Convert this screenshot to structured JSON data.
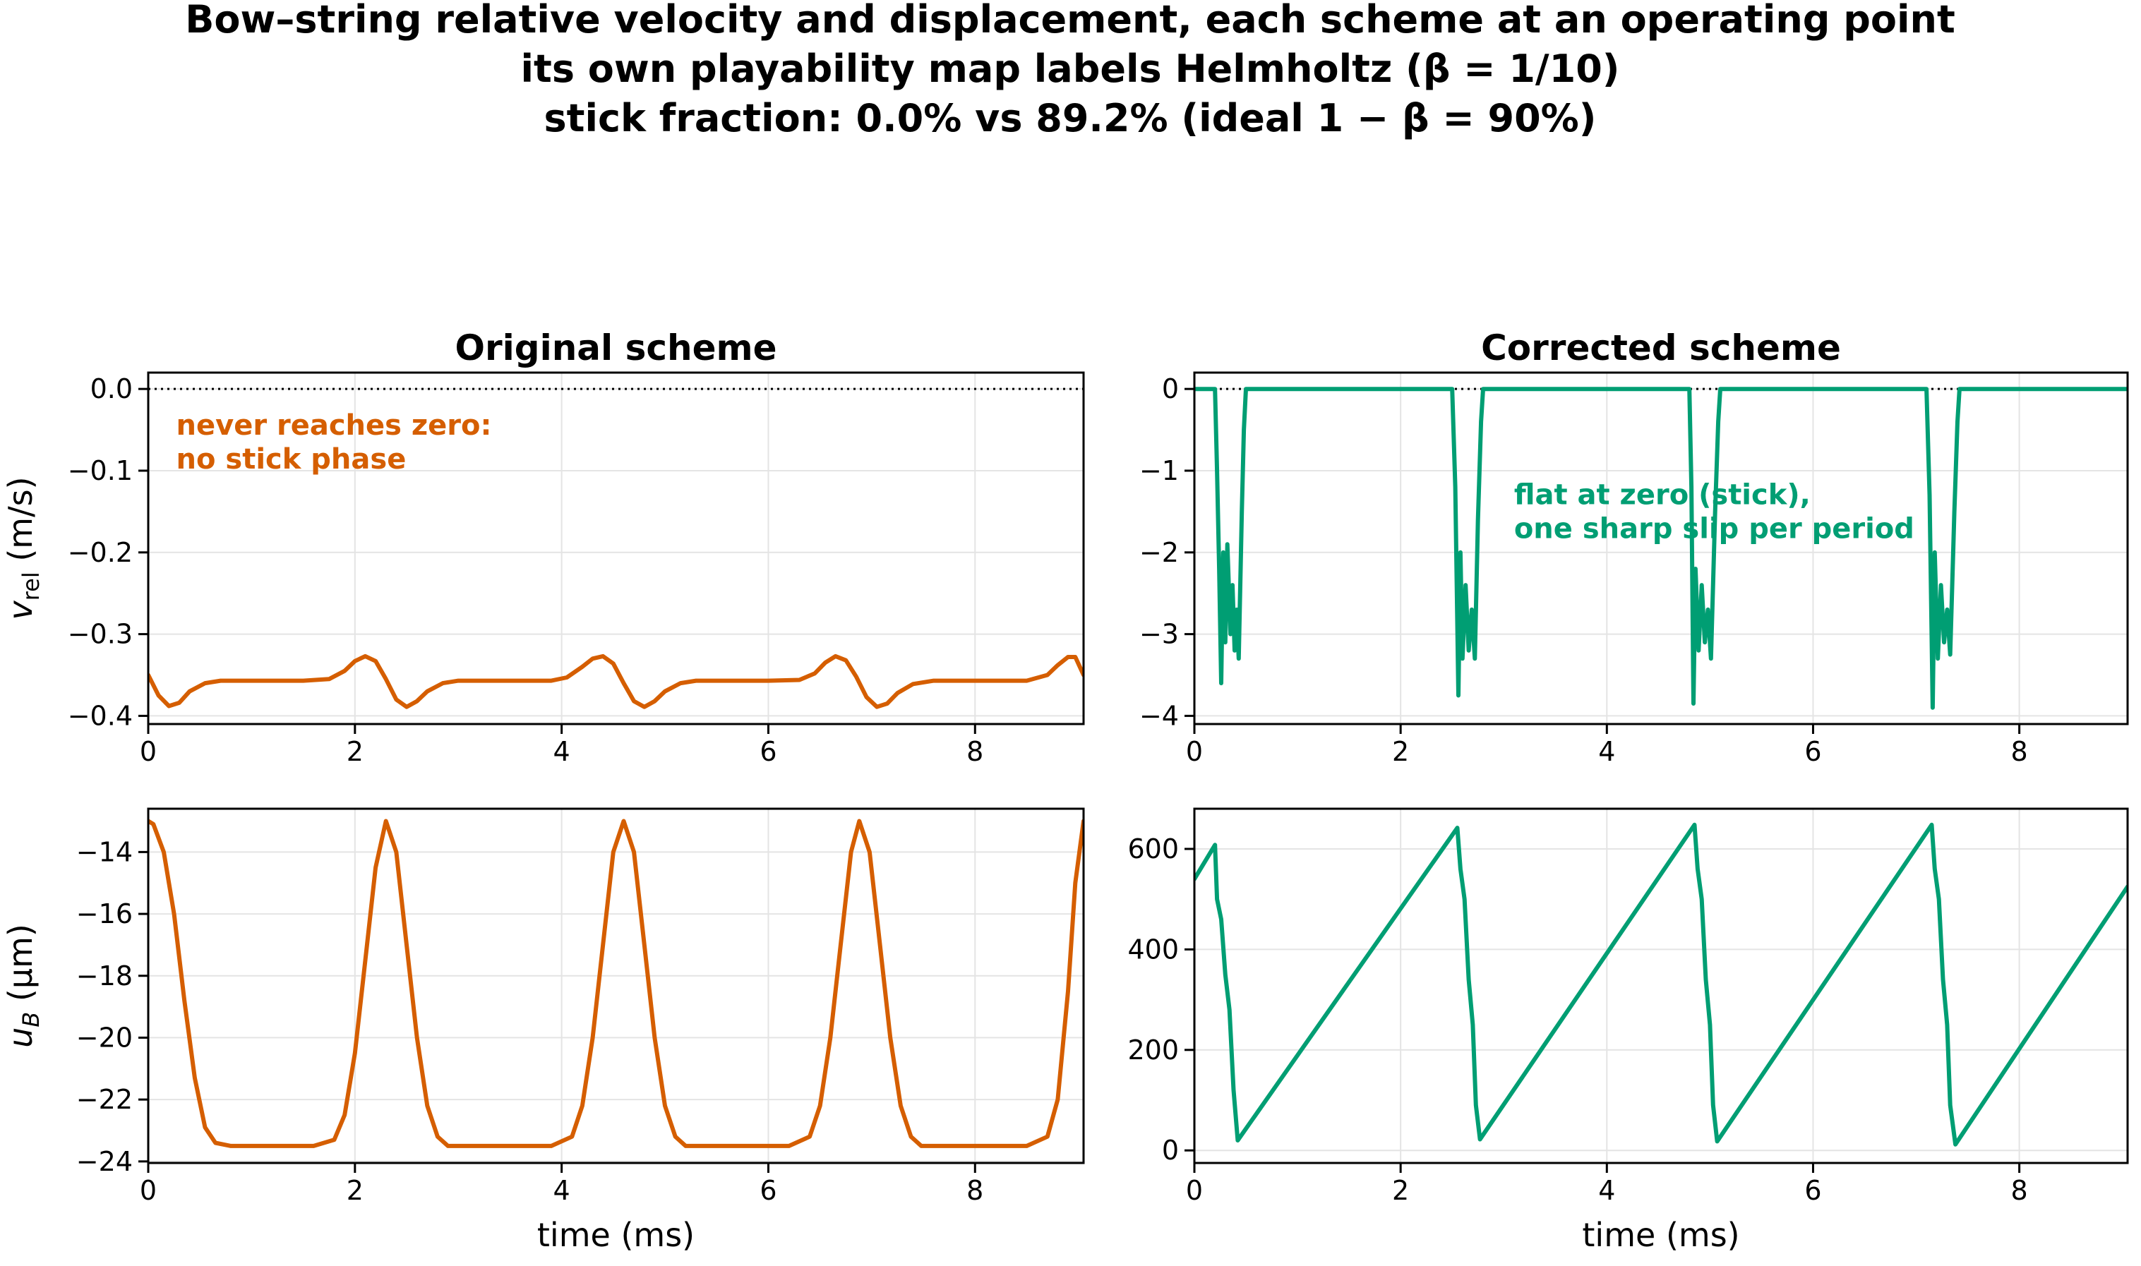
{
  "figure": {
    "title_lines": [
      "Bow–string relative velocity and displacement, each scheme at an operating point",
      "its own playability map labels Helmholtz   (β = 1/10)",
      "stick fraction: 0.0%  vs  89.2%      (ideal 1 − β = 90%)"
    ],
    "colors": {
      "original": "#d55e00",
      "corrected": "#009e73",
      "grid": "#e4e4e4",
      "axis": "#000000"
    }
  },
  "chart_data": [
    {
      "id": "orig-vel",
      "type": "line",
      "title": "Original scheme",
      "xlabel": "",
      "ylabel": "v_rel  (m/s)",
      "xlim": [
        0,
        9.05
      ],
      "ylim": [
        -0.41,
        0.02
      ],
      "xticks": [
        0,
        2,
        4,
        6,
        8
      ],
      "yticks": [
        0.0,
        -0.1,
        -0.2,
        -0.3,
        -0.4
      ],
      "ytick_labels": [
        "0.0",
        "−0.1",
        "−0.2",
        "−0.3",
        "−0.4"
      ],
      "grid": true,
      "hline": {
        "y": 0,
        "style": "dotted"
      },
      "annotation": {
        "lines": [
          "never reaches zero:",
          "no stick phase"
        ],
        "x": 0.27,
        "y": -0.03
      },
      "series": [
        {
          "color": "original",
          "points": [
            [
              0,
              -0.35
            ],
            [
              0.1,
              -0.375
            ],
            [
              0.2,
              -0.388
            ],
            [
              0.3,
              -0.384
            ],
            [
              0.4,
              -0.37
            ],
            [
              0.55,
              -0.36
            ],
            [
              0.7,
              -0.357
            ],
            [
              1.0,
              -0.357
            ],
            [
              1.5,
              -0.357
            ],
            [
              1.75,
              -0.355
            ],
            [
              1.9,
              -0.345
            ],
            [
              2.0,
              -0.333
            ],
            [
              2.1,
              -0.327
            ],
            [
              2.2,
              -0.333
            ],
            [
              2.3,
              -0.355
            ],
            [
              2.4,
              -0.38
            ],
            [
              2.5,
              -0.389
            ],
            [
              2.6,
              -0.382
            ],
            [
              2.7,
              -0.37
            ],
            [
              2.85,
              -0.36
            ],
            [
              3.0,
              -0.357
            ],
            [
              3.5,
              -0.357
            ],
            [
              3.9,
              -0.357
            ],
            [
              4.05,
              -0.353
            ],
            [
              4.2,
              -0.34
            ],
            [
              4.3,
              -0.33
            ],
            [
              4.4,
              -0.327
            ],
            [
              4.5,
              -0.336
            ],
            [
              4.6,
              -0.36
            ],
            [
              4.7,
              -0.382
            ],
            [
              4.8,
              -0.389
            ],
            [
              4.9,
              -0.382
            ],
            [
              5.0,
              -0.37
            ],
            [
              5.15,
              -0.36
            ],
            [
              5.3,
              -0.357
            ],
            [
              6.0,
              -0.357
            ],
            [
              6.3,
              -0.356
            ],
            [
              6.45,
              -0.348
            ],
            [
              6.55,
              -0.335
            ],
            [
              6.65,
              -0.327
            ],
            [
              6.75,
              -0.332
            ],
            [
              6.85,
              -0.352
            ],
            [
              6.95,
              -0.377
            ],
            [
              7.05,
              -0.389
            ],
            [
              7.15,
              -0.385
            ],
            [
              7.25,
              -0.372
            ],
            [
              7.4,
              -0.361
            ],
            [
              7.6,
              -0.357
            ],
            [
              8.0,
              -0.357
            ],
            [
              8.5,
              -0.357
            ],
            [
              8.7,
              -0.35
            ],
            [
              8.8,
              -0.338
            ],
            [
              8.9,
              -0.328
            ],
            [
              8.97,
              -0.328
            ],
            [
              9.05,
              -0.35
            ]
          ]
        }
      ]
    },
    {
      "id": "corr-vel",
      "type": "line",
      "title": "Corrected scheme",
      "xlabel": "",
      "ylabel": "",
      "xlim": [
        0,
        9.05
      ],
      "ylim": [
        -4.1,
        0.2
      ],
      "xticks": [
        0,
        2,
        4,
        6,
        8
      ],
      "yticks": [
        0,
        -1,
        -2,
        -3,
        -4
      ],
      "ytick_labels": [
        "0",
        "−1",
        "−2",
        "−3",
        "−4"
      ],
      "grid": true,
      "hline": {
        "y": 0,
        "style": "dotted"
      },
      "annotation": {
        "lines": [
          "flat at zero (stick),",
          "one sharp slip per period"
        ],
        "x": 3.1,
        "y": -1.15
      },
      "series": [
        {
          "color": "corrected",
          "points": [
            [
              0,
              0
            ],
            [
              0.2,
              0
            ],
            [
              0.22,
              -1.0
            ],
            [
              0.24,
              -2.2
            ],
            [
              0.26,
              -3.6
            ],
            [
              0.28,
              -2.0
            ],
            [
              0.3,
              -3.1
            ],
            [
              0.32,
              -1.9
            ],
            [
              0.35,
              -3.0
            ],
            [
              0.37,
              -2.4
            ],
            [
              0.39,
              -3.2
            ],
            [
              0.41,
              -2.7
            ],
            [
              0.43,
              -3.3
            ],
            [
              0.46,
              -1.5
            ],
            [
              0.48,
              -0.5
            ],
            [
              0.5,
              0
            ],
            [
              2.5,
              0
            ],
            [
              2.53,
              -1.2
            ],
            [
              2.56,
              -3.75
            ],
            [
              2.58,
              -2.0
            ],
            [
              2.6,
              -3.3
            ],
            [
              2.63,
              -2.4
            ],
            [
              2.66,
              -3.2
            ],
            [
              2.69,
              -2.7
            ],
            [
              2.72,
              -3.3
            ],
            [
              2.75,
              -1.6
            ],
            [
              2.78,
              -0.4
            ],
            [
              2.8,
              0
            ],
            [
              4.8,
              0
            ],
            [
              4.82,
              -1.2
            ],
            [
              4.84,
              -3.85
            ],
            [
              4.86,
              -2.2
            ],
            [
              4.89,
              -3.2
            ],
            [
              4.92,
              -2.4
            ],
            [
              4.95,
              -3.1
            ],
            [
              4.98,
              -2.7
            ],
            [
              5.01,
              -3.3
            ],
            [
              5.05,
              -1.5
            ],
            [
              5.08,
              -0.4
            ],
            [
              5.1,
              0
            ],
            [
              7.1,
              0
            ],
            [
              7.13,
              -1.3
            ],
            [
              7.16,
              -3.9
            ],
            [
              7.18,
              -2.0
            ],
            [
              7.21,
              -3.3
            ],
            [
              7.24,
              -2.4
            ],
            [
              7.27,
              -3.1
            ],
            [
              7.3,
              -2.7
            ],
            [
              7.33,
              -3.25
            ],
            [
              7.37,
              -1.5
            ],
            [
              7.4,
              -0.4
            ],
            [
              7.42,
              0
            ],
            [
              9.05,
              0
            ]
          ]
        }
      ]
    },
    {
      "id": "orig-disp",
      "type": "line",
      "title": "",
      "xlabel": "time  (ms)",
      "ylabel": "u_B  (μm)",
      "xlim": [
        0,
        9.05
      ],
      "ylim": [
        -24.05,
        -12.6
      ],
      "xticks": [
        0,
        2,
        4,
        6,
        8
      ],
      "yticks": [
        -14,
        -16,
        -18,
        -20,
        -22,
        -24
      ],
      "ytick_labels": [
        "−14",
        "−16",
        "−18",
        "−20",
        "−22",
        "−24"
      ],
      "grid": true,
      "series": [
        {
          "color": "original",
          "points": [
            [
              0,
              -13.0
            ],
            [
              0.05,
              -13.1
            ],
            [
              0.15,
              -14.0
            ],
            [
              0.25,
              -16.0
            ],
            [
              0.35,
              -18.8
            ],
            [
              0.45,
              -21.3
            ],
            [
              0.55,
              -22.9
            ],
            [
              0.65,
              -23.4
            ],
            [
              0.8,
              -23.5
            ],
            [
              1.2,
              -23.5
            ],
            [
              1.6,
              -23.5
            ],
            [
              1.8,
              -23.3
            ],
            [
              1.9,
              -22.5
            ],
            [
              2.0,
              -20.5
            ],
            [
              2.1,
              -17.5
            ],
            [
              2.2,
              -14.5
            ],
            [
              2.3,
              -13.0
            ],
            [
              2.4,
              -14.0
            ],
            [
              2.5,
              -17.0
            ],
            [
              2.6,
              -20.0
            ],
            [
              2.7,
              -22.2
            ],
            [
              2.8,
              -23.2
            ],
            [
              2.9,
              -23.5
            ],
            [
              3.2,
              -23.5
            ],
            [
              3.9,
              -23.5
            ],
            [
              4.1,
              -23.2
            ],
            [
              4.2,
              -22.2
            ],
            [
              4.3,
              -20.0
            ],
            [
              4.4,
              -17.0
            ],
            [
              4.5,
              -14.0
            ],
            [
              4.6,
              -13.0
            ],
            [
              4.7,
              -14.0
            ],
            [
              4.8,
              -17.0
            ],
            [
              4.9,
              -20.0
            ],
            [
              5.0,
              -22.2
            ],
            [
              5.1,
              -23.2
            ],
            [
              5.2,
              -23.5
            ],
            [
              5.6,
              -23.5
            ],
            [
              6.2,
              -23.5
            ],
            [
              6.4,
              -23.2
            ],
            [
              6.5,
              -22.2
            ],
            [
              6.6,
              -20.0
            ],
            [
              6.7,
              -17.0
            ],
            [
              6.8,
              -14.0
            ],
            [
              6.88,
              -13.0
            ],
            [
              6.98,
              -14.0
            ],
            [
              7.08,
              -17.0
            ],
            [
              7.18,
              -20.0
            ],
            [
              7.28,
              -22.2
            ],
            [
              7.38,
              -23.2
            ],
            [
              7.48,
              -23.5
            ],
            [
              8.0,
              -23.5
            ],
            [
              8.5,
              -23.5
            ],
            [
              8.7,
              -23.2
            ],
            [
              8.8,
              -22.0
            ],
            [
              8.9,
              -18.5
            ],
            [
              8.97,
              -15.0
            ],
            [
              9.05,
              -13.0
            ]
          ]
        }
      ]
    },
    {
      "id": "corr-disp",
      "type": "line",
      "title": "",
      "xlabel": "time  (ms)",
      "ylabel": "",
      "xlim": [
        0,
        9.05
      ],
      "ylim": [
        -25,
        680
      ],
      "xticks": [
        0,
        2,
        4,
        6,
        8
      ],
      "yticks": [
        0,
        200,
        400,
        600
      ],
      "ytick_labels": [
        "0",
        "200",
        "400",
        "600"
      ],
      "grid": true,
      "series": [
        {
          "color": "corrected",
          "points": [
            [
              0,
              540
            ],
            [
              0.2,
              608
            ],
            [
              0.22,
              500
            ],
            [
              0.26,
              460
            ],
            [
              0.3,
              350
            ],
            [
              0.34,
              280
            ],
            [
              0.38,
              120
            ],
            [
              0.42,
              20
            ],
            [
              2.55,
              642
            ],
            [
              2.58,
              560
            ],
            [
              2.62,
              500
            ],
            [
              2.66,
              340
            ],
            [
              2.7,
              250
            ],
            [
              2.73,
              90
            ],
            [
              2.77,
              22
            ],
            [
              4.85,
              648
            ],
            [
              4.88,
              560
            ],
            [
              4.92,
              500
            ],
            [
              4.96,
              340
            ],
            [
              5.0,
              250
            ],
            [
              5.03,
              90
            ],
            [
              5.07,
              18
            ],
            [
              7.15,
              648
            ],
            [
              7.18,
              560
            ],
            [
              7.22,
              500
            ],
            [
              7.26,
              340
            ],
            [
              7.3,
              250
            ],
            [
              7.33,
              90
            ],
            [
              7.38,
              12
            ],
            [
              9.05,
              525
            ]
          ]
        }
      ]
    }
  ]
}
